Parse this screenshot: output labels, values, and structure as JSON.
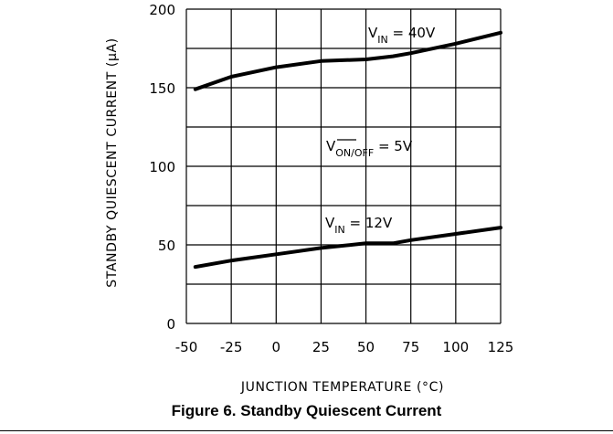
{
  "chart_data": {
    "type": "line",
    "title": "",
    "xlabel": "JUNCTION TEMPERATURE (°C)",
    "ylabel": "STANDBY QUIESCENT CURRENT (μA)",
    "xlim": [
      -50,
      125
    ],
    "ylim": [
      0,
      200
    ],
    "x_ticks": [
      -50,
      -25,
      0,
      25,
      50,
      75,
      100,
      125
    ],
    "y_ticks": [
      0,
      50,
      100,
      150,
      200
    ],
    "grid": true,
    "series": [
      {
        "name": "VIN = 40V",
        "x": [
          -45,
          -25,
          0,
          25,
          50,
          65,
          75,
          100,
          125
        ],
        "y": [
          149,
          157,
          163,
          167,
          168,
          170,
          172,
          178,
          185
        ]
      },
      {
        "name": "VIN = 12V",
        "x": [
          -45,
          -25,
          0,
          25,
          50,
          65,
          75,
          100,
          125
        ],
        "y": [
          36,
          40,
          44,
          48,
          51,
          51,
          53,
          57,
          61
        ]
      }
    ],
    "annotations": [
      {
        "text": "VON/OFF = 5V",
        "x": 62,
        "y": 113
      }
    ]
  },
  "caption": "Figure 6. Standby Quiescent Current"
}
